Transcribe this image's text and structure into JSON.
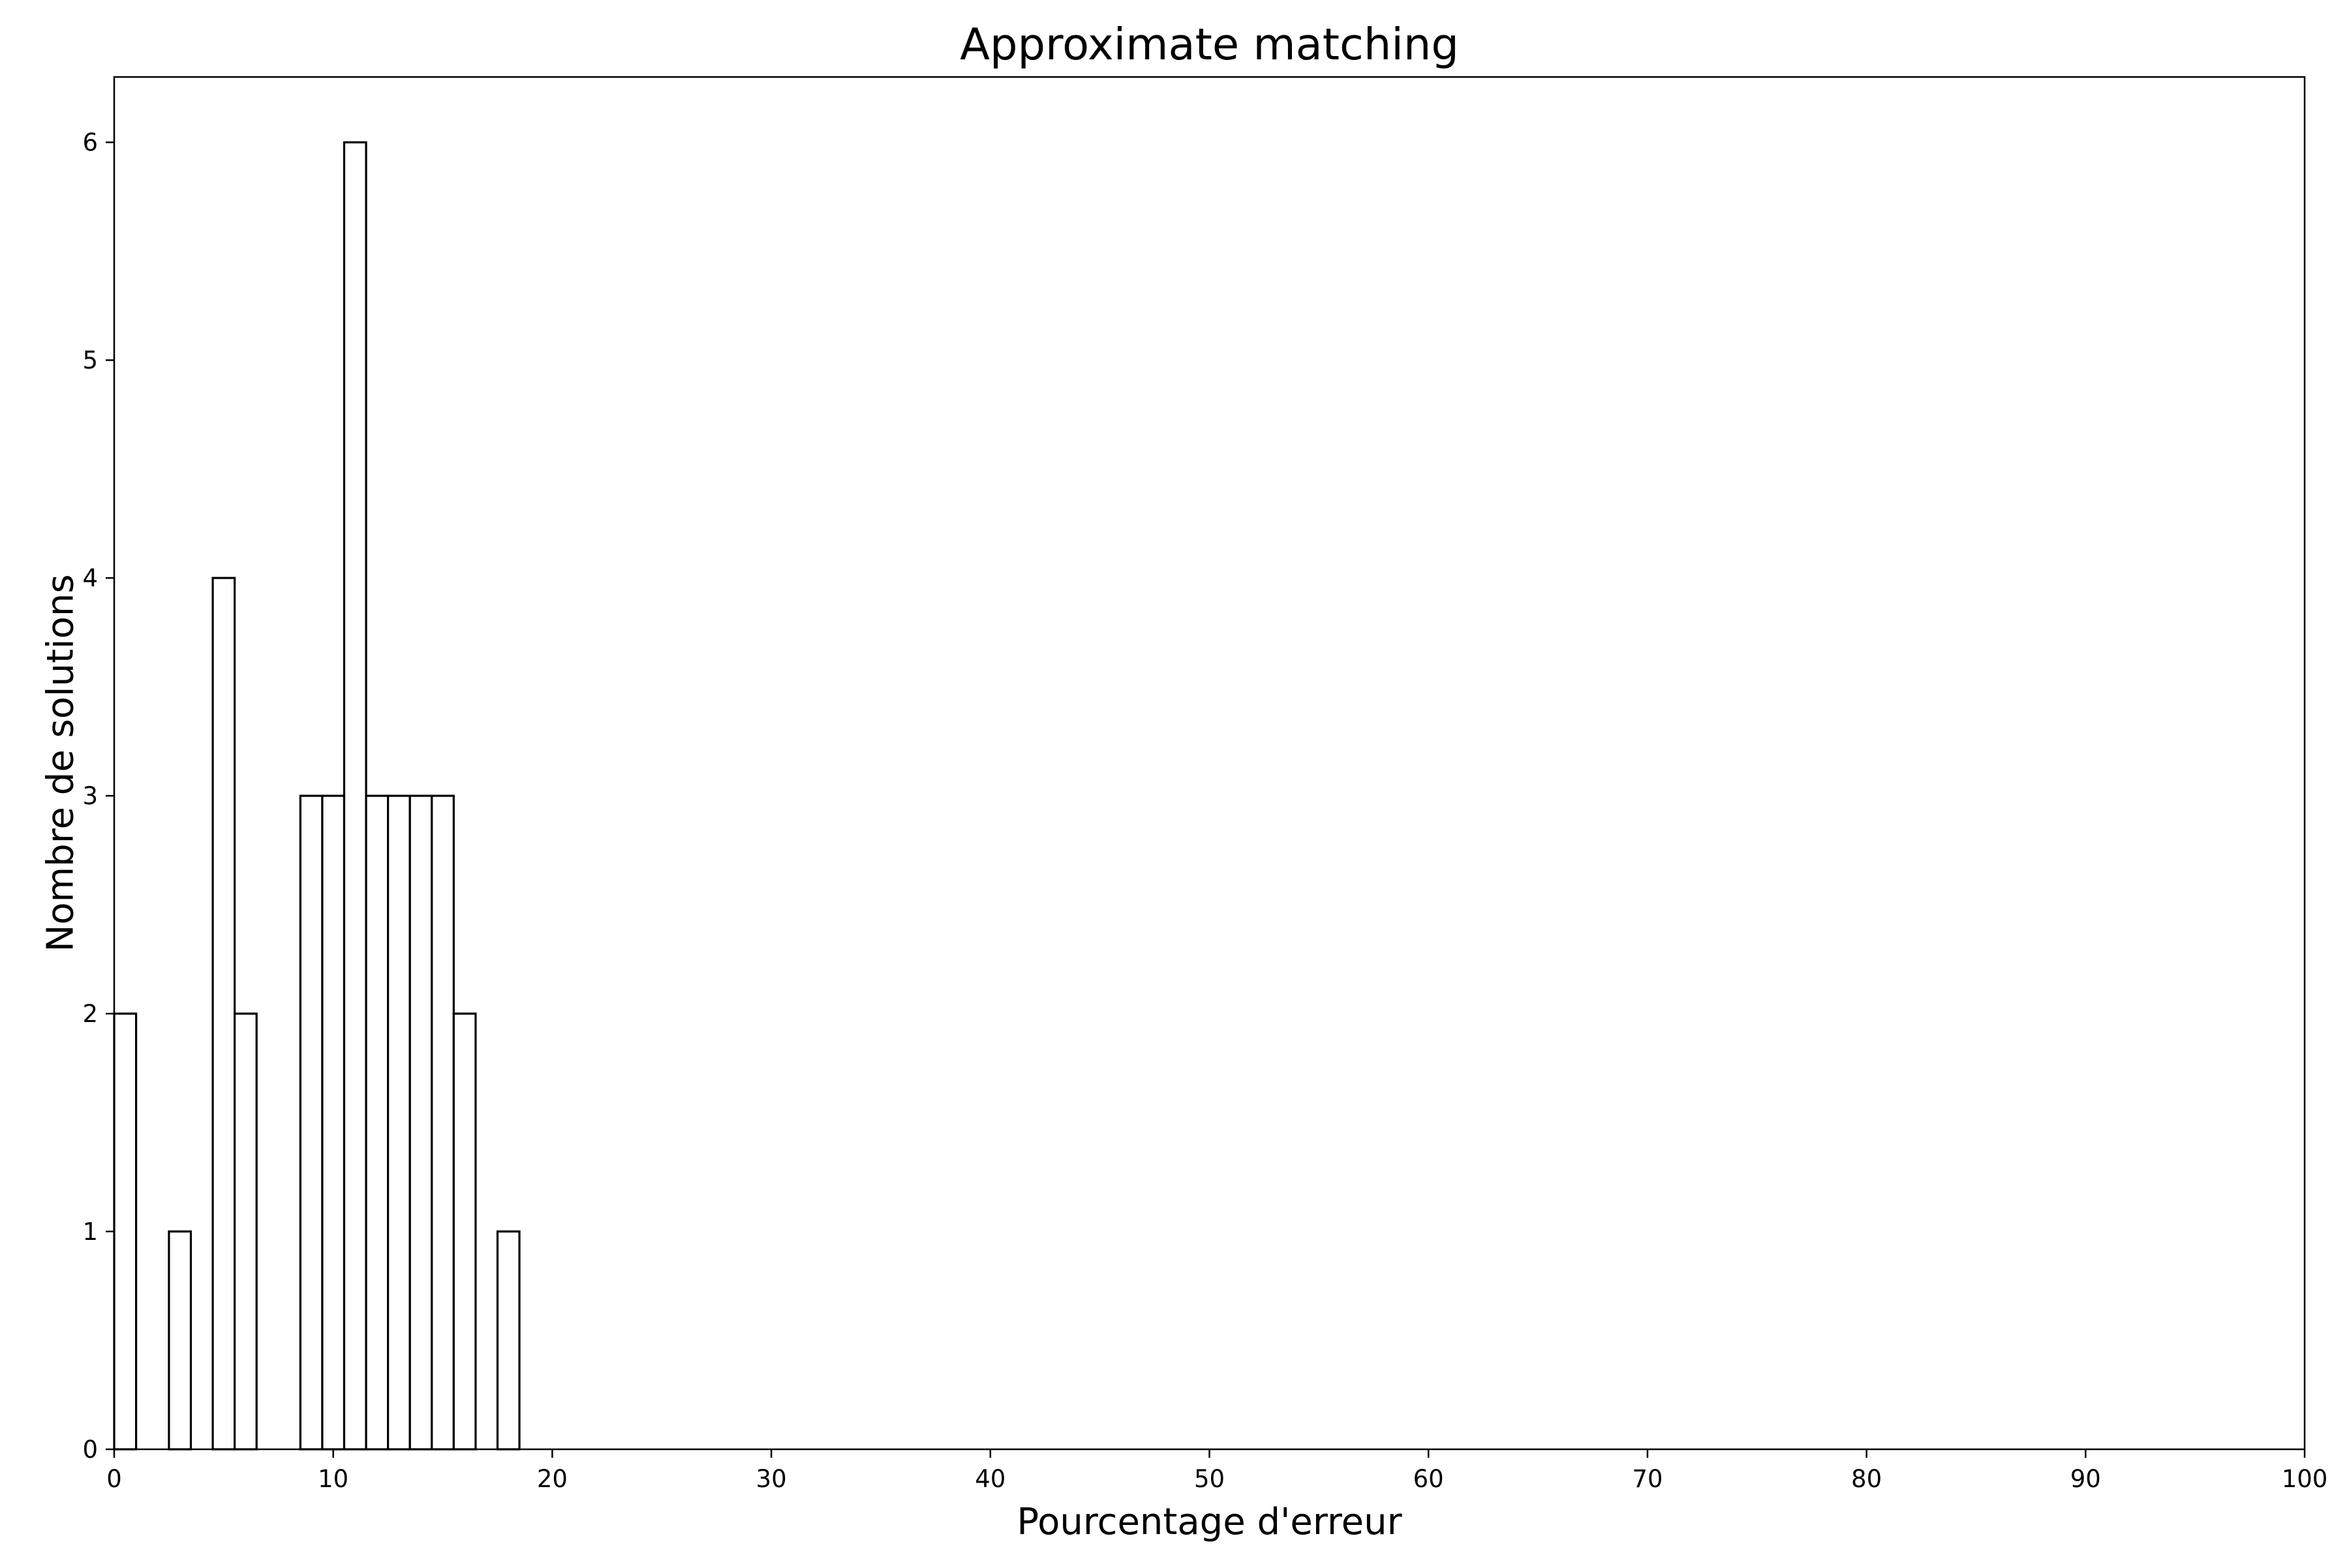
{
  "chart_data": {
    "type": "bar",
    "title": "Approximate matching",
    "xlabel": "Pourcentage d'erreur",
    "ylabel": "Nombre de solutions",
    "xlim": [
      0,
      100
    ],
    "ylim": [
      0,
      6.3
    ],
    "x_ticks": [
      0,
      10,
      20,
      30,
      40,
      50,
      60,
      70,
      80,
      90,
      100
    ],
    "y_ticks": [
      0,
      1,
      2,
      3,
      4,
      5,
      6
    ],
    "bin_width": 1,
    "bins": [
      {
        "start": 0,
        "value": 2
      },
      {
        "start": 2.5,
        "value": 1
      },
      {
        "start": 4.5,
        "value": 4
      },
      {
        "start": 5.5,
        "value": 2
      },
      {
        "start": 8.5,
        "value": 3
      },
      {
        "start": 9.5,
        "value": 3
      },
      {
        "start": 10.5,
        "value": 6
      },
      {
        "start": 11.5,
        "value": 3
      },
      {
        "start": 12.5,
        "value": 3
      },
      {
        "start": 13.5,
        "value": 3
      },
      {
        "start": 14.5,
        "value": 3
      },
      {
        "start": 15.5,
        "value": 2
      },
      {
        "start": 17.5,
        "value": 1
      }
    ],
    "bar_fill": "#ffffff",
    "bar_edge": "#000000",
    "grid": false,
    "legend": "none"
  }
}
